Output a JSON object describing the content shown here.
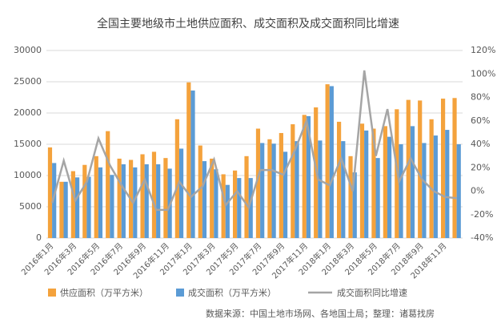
{
  "chart_data": {
    "type": "bar_line",
    "title": "全国主要地级市土地供应面积、成交面积及成交面积同比增速",
    "source": "数据来源：中国土地市场网、各地国土局；整理：诸葛找房",
    "categories": [
      "2016年1月",
      null,
      "2016年3月",
      null,
      "2016年5月",
      null,
      "2016年7月",
      null,
      "2016年9月",
      null,
      "2016年11月",
      null,
      "2017年1月",
      null,
      "2017年3月",
      null,
      "2017年5月",
      null,
      "2017年7月",
      null,
      "2017年9月",
      null,
      "2017年11月",
      null,
      "2018年1月",
      null,
      "2018年3月",
      null,
      "2018年5月",
      null,
      "2018年7月",
      null,
      "2018年9月",
      null,
      "2018年11月",
      null
    ],
    "series": [
      {
        "name": "供应面积（万平方米）",
        "color": "#f4a23c",
        "values": [
          14500,
          9000,
          10700,
          11700,
          13100,
          17100,
          12700,
          12500,
          13400,
          13800,
          12800,
          19000,
          24900,
          14800,
          12700,
          10200,
          10800,
          13100,
          17500,
          15800,
          16800,
          18200,
          19700,
          20900,
          24600,
          18600,
          13100,
          18300,
          17500,
          17900,
          20600,
          22100,
          22000,
          19000,
          22300,
          22400
        ]
      },
      {
        "name": "成交面积（万平方米）",
        "color": "#5b9bd5",
        "values": [
          12000,
          9000,
          9700,
          9800,
          11300,
          10100,
          11800,
          11300,
          11800,
          11800,
          11100,
          14300,
          23600,
          12300,
          11000,
          8500,
          9600,
          9600,
          15200,
          15100,
          13800,
          15500,
          19500,
          15600,
          24300,
          15500,
          10500,
          17200,
          12800,
          16200,
          15000,
          17900,
          15200,
          16400,
          17300,
          15000
        ]
      },
      {
        "name": "成交面积同比增速",
        "color": "#a5a5a5",
        "axis": "y2",
        "values": [
          -10,
          26,
          -8,
          8,
          45,
          22,
          5,
          -10,
          10,
          -16,
          -16,
          8,
          -5,
          4,
          27,
          -12,
          0,
          -14,
          18,
          18,
          14,
          35,
          60,
          10,
          5,
          28,
          0,
          103,
          30,
          70,
          8,
          28,
          10,
          0,
          -5,
          -6
        ]
      }
    ],
    "ylim": [
      0,
      30000
    ],
    "yticks": [
      0,
      5000,
      10000,
      15000,
      20000,
      25000,
      30000
    ],
    "y2lim": [
      -40,
      120
    ],
    "y2ticks": [
      {
        "value": -40,
        "label": "-40%"
      },
      {
        "value": -20,
        "label": "-20%"
      },
      {
        "value": 0,
        "label": "0%"
      },
      {
        "value": 20,
        "label": "20%"
      },
      {
        "value": 40,
        "label": "40%"
      },
      {
        "value": 60,
        "label": "60%"
      },
      {
        "value": 80,
        "label": "80%"
      },
      {
        "value": 100,
        "label": "100%"
      },
      {
        "value": 120,
        "label": "120%"
      }
    ],
    "grid": true
  }
}
